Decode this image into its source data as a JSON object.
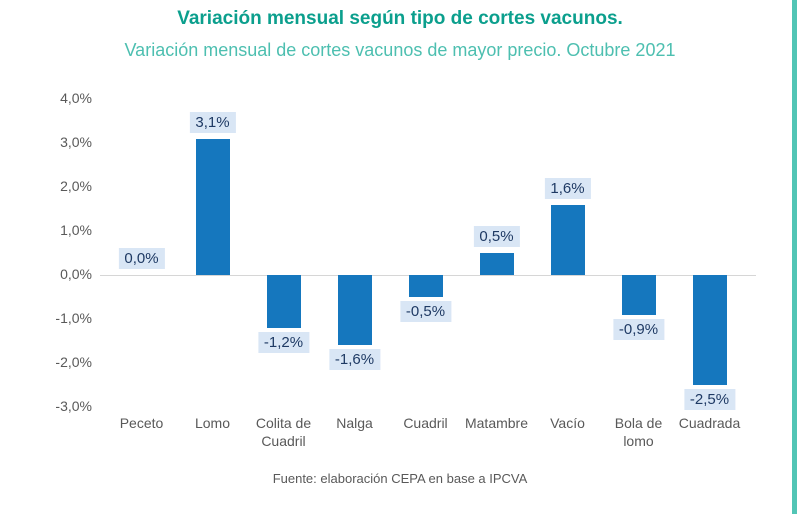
{
  "header": {
    "title": "Variación mensual según tipo de cortes vacunos.",
    "subtitle": "Variación mensual de cortes vacunos de mayor precio. Octubre 2021"
  },
  "footer": {
    "source": "Fuente: elaboración CEPA en base a IPCVA"
  },
  "colors": {
    "bar": "#1577be",
    "label_bg": "#d9e6f5",
    "label_text": "#1f3a64",
    "title": "#0b9f8d",
    "subtitle": "#4dbfb0",
    "axis_text": "#595959",
    "zero_line": "#d6d6d6",
    "stripe": "#52c5b5"
  },
  "chart_data": {
    "type": "bar",
    "title": "Variación mensual según tipo de cortes vacunos.",
    "subtitle": "Variación mensual de cortes vacunos de mayor precio. Octubre 2021",
    "categories": [
      "Peceto",
      "Lomo",
      "Colita de Cuadril",
      "Nalga",
      "Cuadril",
      "Matambre",
      "Vacío",
      "Bola de lomo",
      "Cuadrada"
    ],
    "values": [
      0.0,
      3.1,
      -1.2,
      -1.6,
      -0.5,
      0.5,
      1.6,
      -0.9,
      -2.5
    ],
    "value_labels": [
      "0,0%",
      "3,1%",
      "-1,2%",
      "-1,6%",
      "-0,5%",
      "0,5%",
      "1,6%",
      "-0,9%",
      "-2,5%"
    ],
    "y_ticks": [
      "4,0%",
      "3,0%",
      "2,0%",
      "1,0%",
      "0,0%",
      "-1,0%",
      "-2,0%",
      "-3,0%"
    ],
    "y_tick_values": [
      4,
      3,
      2,
      1,
      0,
      -1,
      -2,
      -3
    ],
    "ylim": [
      -3,
      4
    ],
    "xlabel": "",
    "ylabel": "",
    "grid": false,
    "legend": false,
    "source": "Fuente: elaboración CEPA en base a IPCVA"
  }
}
